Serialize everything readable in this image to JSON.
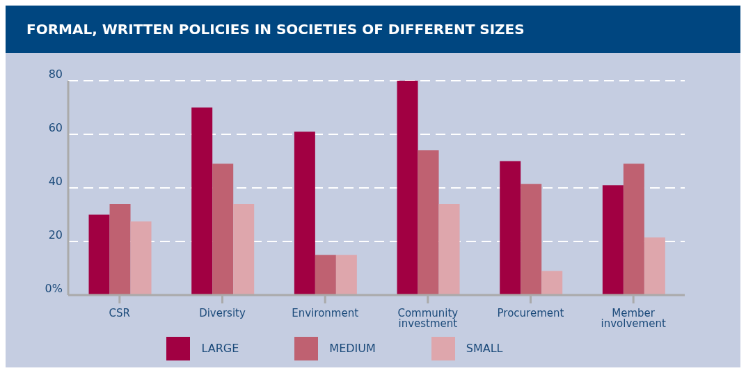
{
  "chart_data": {
    "type": "bar",
    "title": "FORMAL, WRITTEN POLICIES IN SOCIETIES OF DIFFERENT SIZES",
    "categories": [
      "CSR",
      "Diversity",
      "Environment",
      "Community investment",
      "Procurement",
      "Member involvement"
    ],
    "series": [
      {
        "name": "LARGE",
        "color": "#a10042",
        "values": [
          30,
          70,
          61,
          80,
          50,
          41
        ]
      },
      {
        "name": "MEDIUM",
        "color": "#bf6171",
        "values": [
          34,
          49,
          15,
          54,
          41.5,
          49
        ]
      },
      {
        "name": "SMALL",
        "color": "#dea6ac",
        "values": [
          27.5,
          34,
          15,
          34,
          9,
          21.5
        ]
      }
    ],
    "ylim": [
      0,
      80
    ],
    "yticks": [
      {
        "value": 0,
        "label": "0%"
      },
      20,
      40,
      60,
      80
    ],
    "grid": "y",
    "legend": "bottom"
  }
}
